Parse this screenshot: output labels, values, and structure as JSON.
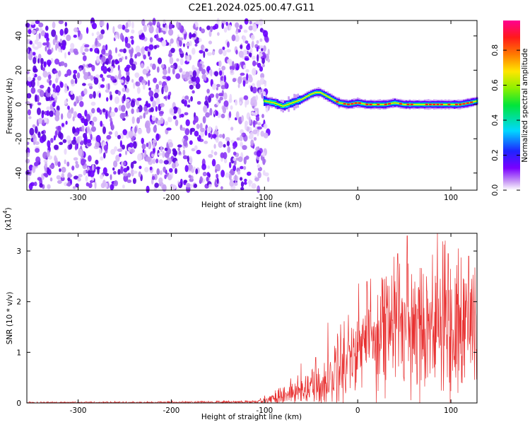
{
  "title": "C2E1.2024.025.00.47.G11",
  "colors": {
    "axis": "#000000",
    "snr_line": "#e83030",
    "noise_point": "#6a00ff",
    "track_core": "#ff2a1a"
  },
  "chart_data": [
    {
      "type": "heatmap",
      "xlabel": "Height of straight line (km)",
      "ylabel": "Frequency (Hz)",
      "xlim": [
        -355,
        128
      ],
      "ylim": [
        -50,
        49
      ],
      "x_ticks": [
        "-300",
        "-200",
        "-100",
        "0",
        "100"
      ],
      "x_tick_values": [
        -300,
        -200,
        -100,
        0,
        100
      ],
      "y_ticks": [
        "40",
        "20",
        "0",
        "-20",
        "-40"
      ],
      "y_tick_values": [
        40,
        20,
        0,
        -20,
        -40
      ],
      "noise_region_x": [
        -355,
        -95
      ],
      "track": {
        "x": [
          -100,
          -90,
          -80,
          -70,
          -60,
          -50,
          -45,
          -40,
          -30,
          -20,
          -10,
          0,
          10,
          20,
          30,
          40,
          50,
          60,
          70,
          80,
          90,
          100,
          110,
          120,
          128
        ],
        "y": [
          2,
          1,
          -1,
          1,
          3,
          6,
          7,
          7,
          4,
          1,
          0,
          1,
          0,
          0,
          0,
          1,
          0,
          0,
          0,
          0,
          0,
          0,
          0,
          1,
          2
        ]
      },
      "colorbar": {
        "label": "Normalized spectral amplitude",
        "range": [
          0,
          0.97
        ],
        "ticks": [
          "0.0",
          "0.2",
          "0.4",
          "0.6",
          "0.8"
        ],
        "tick_values": [
          0,
          0.2,
          0.4,
          0.6,
          0.8
        ]
      }
    },
    {
      "type": "line",
      "xlabel": "Height of straight line (km)",
      "ylabel": "SNR (10 * v/v)",
      "exponent_label": "(x10",
      "exponent_power": "4",
      "exponent_close": ")",
      "xlim": [
        -355,
        128
      ],
      "ylim": [
        0,
        3.35
      ],
      "x_ticks": [
        "-300",
        "-200",
        "-100",
        "0",
        "100"
      ],
      "x_tick_values": [
        -300,
        -200,
        -100,
        0,
        100
      ],
      "y_ticks": [
        "0",
        "1",
        "2",
        "3"
      ],
      "y_tick_values": [
        0,
        1,
        2,
        3
      ],
      "series": [
        {
          "envelope": {
            "x": [
              -355,
              -200,
              -110,
              -100,
              -90,
              -80,
              -70,
              -60,
              -50,
              -40,
              -30,
              -20,
              -10,
              0,
              10,
              20,
              30,
              40,
              50,
              60,
              70,
              80,
              90,
              100,
              110,
              120,
              128
            ],
            "mean": [
              0.01,
              0.01,
              0.02,
              0.04,
              0.1,
              0.15,
              0.2,
              0.22,
              0.35,
              0.3,
              0.5,
              0.75,
              0.95,
              1.15,
              1.3,
              1.4,
              1.55,
              1.6,
              1.55,
              1.65,
              1.6,
              1.65,
              1.55,
              1.5,
              1.55,
              1.55,
              1.5
            ],
            "amplitude": [
              0.01,
              0.01,
              0.02,
              0.05,
              0.08,
              0.12,
              0.15,
              0.2,
              0.25,
              0.25,
              0.35,
              0.45,
              0.5,
              0.55,
              0.6,
              0.65,
              0.7,
              0.75,
              0.8,
              0.8,
              0.8,
              0.8,
              0.8,
              0.8,
              0.8,
              0.75,
              0.75
            ]
          },
          "peaks": [
            {
              "x": 53,
              "y": 3.3
            },
            {
              "x": 43,
              "y": 2.95
            },
            {
              "x": 97,
              "y": 2.95
            },
            {
              "x": 119,
              "y": 2.9
            },
            {
              "x": 10,
              "y": 2.4
            },
            {
              "x": -45,
              "y": 0.9
            }
          ]
        }
      ]
    }
  ]
}
